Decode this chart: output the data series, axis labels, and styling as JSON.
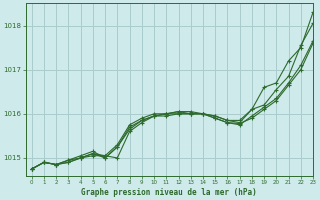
{
  "bg_color": "#ceeaea",
  "grid_color": "#aacccc",
  "line_color": "#2d6a2d",
  "xlabel": "Graphe pression niveau de la mer (hPa)",
  "ylim": [
    1014.6,
    1018.5
  ],
  "xlim": [
    -0.5,
    23
  ],
  "yticks": [
    1015,
    1016,
    1017,
    1018
  ],
  "xticks": [
    0,
    1,
    2,
    3,
    4,
    5,
    6,
    7,
    8,
    9,
    10,
    11,
    12,
    13,
    14,
    15,
    16,
    17,
    18,
    19,
    20,
    21,
    22,
    23
  ],
  "series": [
    [
      1014.75,
      1014.9,
      1014.85,
      1014.9,
      1015.0,
      1015.05,
      1015.05,
      1015.0,
      1015.6,
      1015.8,
      1015.95,
      1016.0,
      1016.0,
      1016.0,
      1016.0,
      1015.95,
      1015.85,
      1015.85,
      1016.1,
      1016.6,
      1016.7,
      1017.2,
      1017.5,
      1018.3
    ],
    [
      1014.75,
      1014.9,
      1014.85,
      1014.95,
      1015.0,
      1015.1,
      1015.05,
      1015.3,
      1015.75,
      1015.9,
      1016.0,
      1016.0,
      1016.05,
      1016.05,
      1016.0,
      1015.95,
      1015.85,
      1015.8,
      1016.1,
      1016.2,
      1016.55,
      1016.85,
      1017.55,
      1018.05
    ],
    [
      1014.75,
      1014.9,
      1014.85,
      1014.9,
      1015.0,
      1015.1,
      1015.0,
      1015.25,
      1015.7,
      1015.85,
      1015.95,
      1015.95,
      1016.0,
      1016.0,
      1016.0,
      1015.9,
      1015.8,
      1015.78,
      1015.9,
      1016.1,
      1016.3,
      1016.65,
      1017.0,
      1017.6
    ],
    [
      1014.75,
      1014.9,
      1014.85,
      1014.95,
      1015.05,
      1015.15,
      1015.0,
      1015.25,
      1015.65,
      1015.85,
      1015.95,
      1016.0,
      1016.05,
      1016.0,
      1016.0,
      1015.9,
      1015.8,
      1015.75,
      1015.95,
      1016.15,
      1016.35,
      1016.7,
      1017.1,
      1017.65
    ]
  ]
}
